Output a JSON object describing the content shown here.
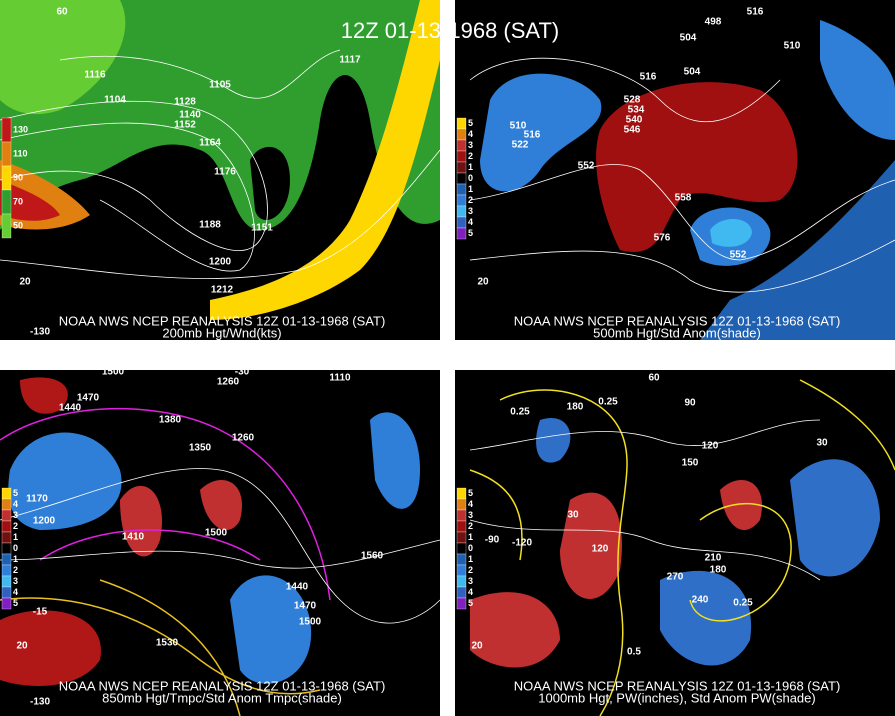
{
  "title": "12Z 01-13-1968 (SAT)",
  "panels": [
    {
      "caption": "NOAA NWS NCEP REANALYSIS 12Z 01-13-1968 (SAT)",
      "subcaption": "200mb Hgt/Wnd(kts)",
      "legend": [
        "130",
        "110",
        "90",
        "70",
        "50"
      ],
      "labels": [
        "1116",
        "1104",
        "1105",
        "1117",
        "1128",
        "1140",
        "1152",
        "1164",
        "1176",
        "1188",
        "1200",
        "1212",
        "1151",
        "60",
        "20",
        "-130"
      ]
    },
    {
      "caption": "NOAA NWS NCEP REANALYSIS 12Z 01-13-1968 (SAT)",
      "subcaption": "500mb Hgt/Std Anom(shade)",
      "legend": [
        "5",
        "4",
        "3",
        "2",
        "1",
        "0",
        "1",
        "2",
        "3",
        "4",
        "5"
      ],
      "labels": [
        "510",
        "516",
        "522",
        "528",
        "534",
        "540",
        "546",
        "552",
        "558",
        "576",
        "504",
        "516",
        "498",
        "504",
        "510",
        "516",
        "552",
        "20"
      ]
    },
    {
      "caption": "NOAA NWS NCEP REANALYSIS 12Z 01-13-1968 (SAT)",
      "subcaption": "850mb Hgt/Tmpc/Std Anom Tmpc(shade)",
      "legend": [
        "5",
        "4",
        "3",
        "2",
        "1",
        "0",
        "1",
        "2",
        "3",
        "4",
        "5"
      ],
      "labels": [
        "1500",
        "1470",
        "1440",
        "1260",
        "1380",
        "1350",
        "1260",
        "1170",
        "1200",
        "1410",
        "1500",
        "1560",
        "1440",
        "1470",
        "1500",
        "1530",
        "1110",
        "-30",
        "20",
        "-15",
        "-130"
      ]
    },
    {
      "caption": "NOAA NWS NCEP REANALYSIS 12Z 01-13-1968 (SAT)",
      "subcaption": "1000mb Hgt, PW(inches), Std Anom PW(shade)",
      "legend": [
        "5",
        "4",
        "3",
        "2",
        "1",
        "0",
        "1",
        "2",
        "3",
        "4",
        "5"
      ],
      "labels": [
        "0.25",
        "0.25",
        "180",
        "60",
        "90",
        "120",
        "150",
        "30",
        "120",
        "210",
        "180",
        "270",
        "240",
        "0.25",
        "0.5",
        "30",
        "-90",
        "-120",
        "20"
      ]
    }
  ]
}
